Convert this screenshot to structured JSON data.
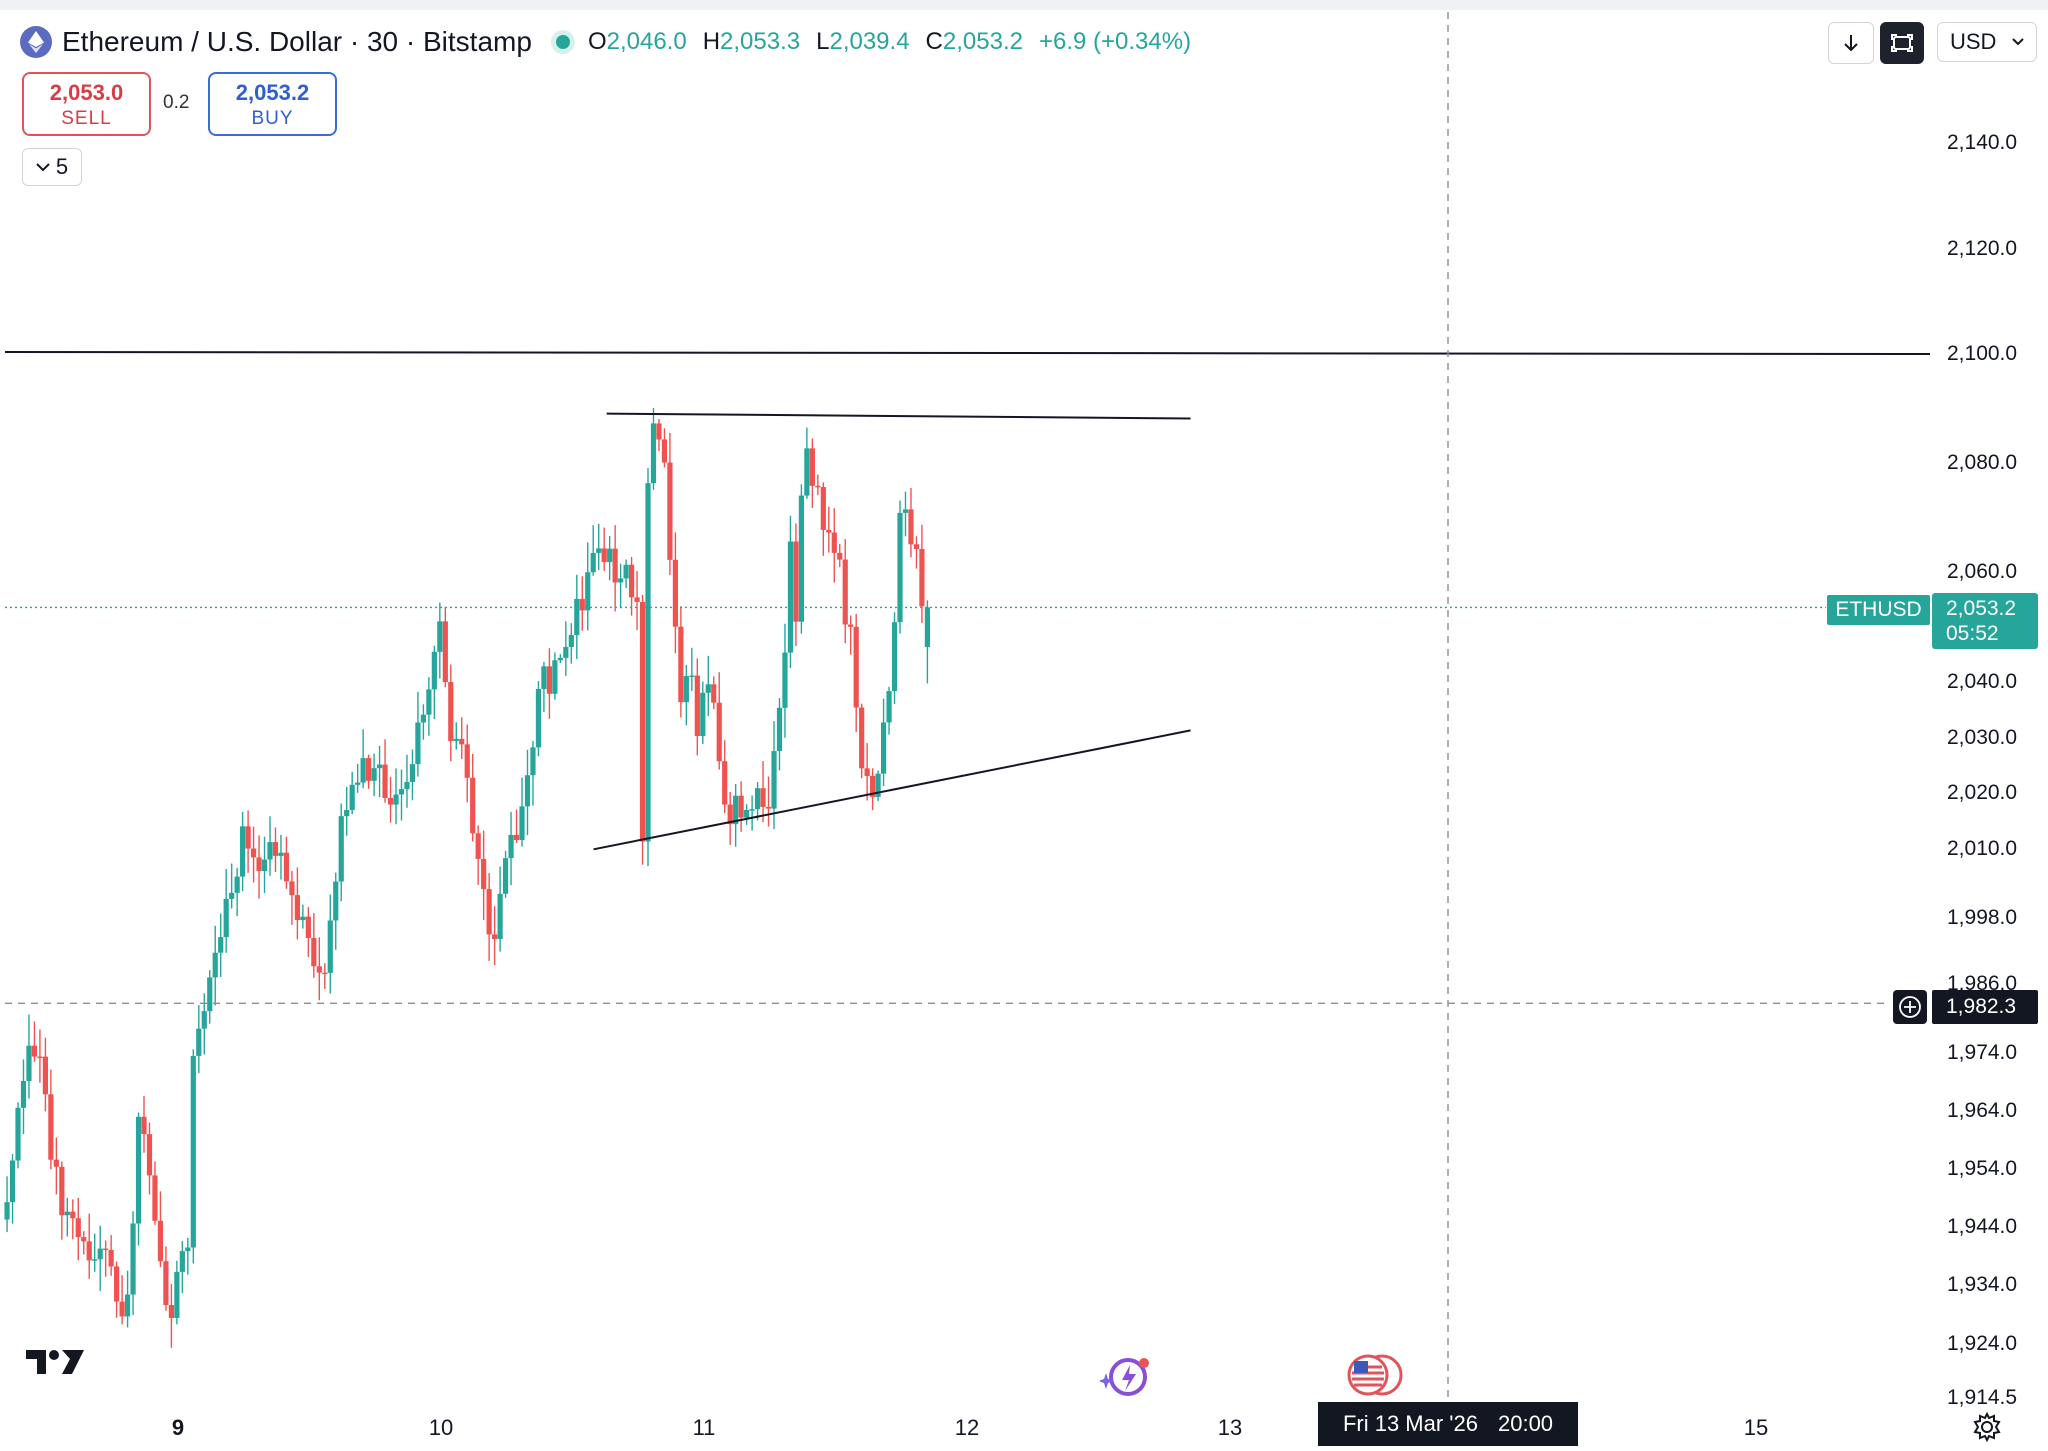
{
  "header": {
    "symbol_title": "Ethereum / U.S. Dollar · 30 · Bitstamp",
    "ohlc": [
      {
        "key": "O",
        "value": "2,046.0"
      },
      {
        "key": "H",
        "value": "2,053.3"
      },
      {
        "key": "L",
        "value": "2,039.4"
      },
      {
        "key": "C",
        "value": "2,053.2"
      }
    ],
    "change": "+6.9 (+0.34%)"
  },
  "trade": {
    "sell_price": "2,053.0",
    "sell_label": "SELL",
    "spread": "0.2",
    "buy_price": "2,053.2",
    "buy_label": "BUY"
  },
  "indicators_collapse": {
    "count": "5"
  },
  "toolbar": {
    "currency": "USD"
  },
  "price_axis": {
    "symbol_tag": "ETHUSD",
    "last_price": "2,053.2",
    "countdown": "05:52",
    "crosshair_price": "1,982.3"
  },
  "time_axis": {
    "crosshair_date": "Fri 13 Mar '26",
    "crosshair_time": "20:00"
  },
  "colors": {
    "up": "#26a69a",
    "down": "#ef5350",
    "crosshair_tag": "#131722",
    "drawing": "#131722"
  },
  "chart_data": {
    "type": "candlestick",
    "symbol": "ETHUSD",
    "interval": "30",
    "exchange": "Bitstamp",
    "y_ticks": [
      2140,
      2120,
      2100,
      2080,
      2060,
      2040,
      2030,
      2020,
      2010,
      1998,
      1986,
      1974,
      1964,
      1954,
      1944,
      1934,
      1924,
      1914.5
    ],
    "y_tick_labels": [
      "2,140.0",
      "2,120.0",
      "2,100.0",
      "2,080.0",
      "2,060.0",
      "2,040.0",
      "2,030.0",
      "2,020.0",
      "2,010.0",
      "1,998.0",
      "1,986.0",
      "1,974.0",
      "1,964.0",
      "1,954.0",
      "1,944.0",
      "1,934.0",
      "1,924.0",
      "1,914.5"
    ],
    "x_ticks": [
      {
        "label": "9",
        "day": 9
      },
      {
        "label": "10",
        "day": 10
      },
      {
        "label": "11",
        "day": 11
      },
      {
        "label": "12",
        "day": 12
      },
      {
        "label": "13",
        "day": 13
      },
      {
        "label": "15",
        "day": 15
      }
    ],
    "x_range_days": [
      8.33,
      15.8
    ],
    "candle_day_start": 8.35,
    "candle_step_days": 0.02083,
    "candle_anchors": [
      [
        1950,
        1962,
        1976,
        1972,
        1958,
        1948,
        1944,
        1941,
        1938,
        1938,
        1932,
        1930,
        1962,
        1955,
        1935,
        1926,
        1940,
        1946
      ],
      [
        1975,
        1986,
        1998,
        2012,
        2006,
        2010,
        2002,
        1993,
        1986,
        2015,
        2022,
        2026,
        2018,
        2023,
        2036,
        2050
      ],
      [
        2050,
        2032,
        2028,
        2014,
        2000,
        1993,
        2010,
        2013,
        2020,
        2040,
        2040,
        2046,
        2050,
        2055,
        2064,
        2062,
        2060,
        2060,
        2052
      ],
      [
        2052,
        2009,
        2076,
        2084,
        2082,
        2077,
        2064,
        2047,
        2036,
        2040,
        2040,
        2028,
        2036,
        2038,
        2034,
        2024,
        2020,
        2015,
        2020,
        2014,
        2017,
        2014,
        2022,
        2018,
        2017,
        2026,
        2036,
        2044,
        2064,
        2053,
        2076,
        2082,
        2076,
        2076,
        2070,
        2066,
        2065,
        2060,
        2052,
        2049,
        2035,
        2026,
        2022,
        2020,
        2025,
        2034,
        2040,
        2053,
        2070,
        2072,
        2064,
        2064,
        2054,
        2053
      ]
    ],
    "drawings": [
      {
        "type": "horizontal_line",
        "price": 2100
      },
      {
        "type": "trend_line",
        "from": [
          10.63,
          2088.7
        ],
        "to": [
          12.85,
          2087.8
        ]
      },
      {
        "type": "trend_line",
        "from": [
          10.58,
          2009.6
        ],
        "to": [
          12.85,
          2031.0
        ]
      }
    ],
    "last_price": 2053.2,
    "crosshair": {
      "price": 1982.3,
      "time": "Fri 13 Mar '26 20:00"
    }
  }
}
